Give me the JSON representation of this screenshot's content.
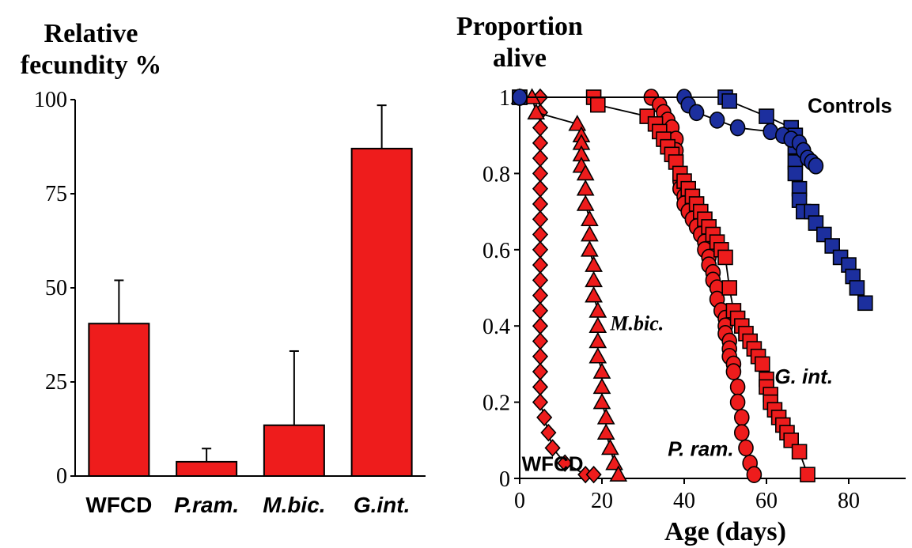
{
  "chart_data": [
    {
      "type": "bar",
      "title_lines": [
        "Relative",
        "fecundity %"
      ],
      "categories": [
        "WFCD",
        "P.ram.",
        "M.bic.",
        "G.int."
      ],
      "values": [
        40.5,
        3.8,
        13.5,
        87
      ],
      "error_upper": [
        52,
        7.3,
        33.2,
        98.5
      ],
      "ylim": [
        0,
        100
      ],
      "yticks": [
        0,
        25,
        50,
        75,
        100
      ],
      "bar_color": "#ee1c1c",
      "grid": false
    },
    {
      "type": "line",
      "title_lines": [
        "Proportion",
        "alive"
      ],
      "xlabel": "Age (days)",
      "xlim": [
        0,
        85
      ],
      "ylim": [
        0,
        1
      ],
      "xticks": [
        0,
        20,
        40,
        60,
        80
      ],
      "yticks": [
        0,
        0.2,
        0.4,
        0.6,
        0.8,
        1
      ],
      "ytick_labels": [
        "0",
        "0.2",
        "0.4",
        "0.6",
        "0.8",
        "1"
      ],
      "grid": false,
      "series": [
        {
          "name": "WFCD",
          "marker": "diamond",
          "color": "#ee1c1c",
          "x": [
            0,
            5,
            5,
            5,
            5,
            5,
            5,
            5,
            5,
            5,
            5,
            5,
            5,
            5,
            5,
            5,
            5,
            5,
            5,
            5,
            5,
            5,
            6,
            7,
            8,
            11,
            16,
            18
          ],
          "y": [
            1,
            1,
            0.96,
            0.92,
            0.88,
            0.84,
            0.8,
            0.76,
            0.72,
            0.68,
            0.64,
            0.6,
            0.56,
            0.52,
            0.48,
            0.44,
            0.4,
            0.36,
            0.32,
            0.28,
            0.24,
            0.2,
            0.16,
            0.12,
            0.08,
            0.04,
            0.01,
            0.01
          ]
        },
        {
          "name": "M.bic.",
          "marker": "triangle",
          "color": "#ee1c1c",
          "x": [
            0,
            3,
            4,
            14,
            15,
            15,
            15,
            15,
            16,
            16,
            16,
            17,
            17,
            17,
            18,
            18,
            18,
            19,
            19,
            19,
            19,
            20,
            20,
            20,
            21,
            21,
            22,
            23,
            24
          ],
          "y": [
            1,
            1,
            0.96,
            0.93,
            0.9,
            0.88,
            0.85,
            0.82,
            0.8,
            0.76,
            0.72,
            0.68,
            0.64,
            0.6,
            0.56,
            0.52,
            0.48,
            0.44,
            0.4,
            0.36,
            0.32,
            0.28,
            0.24,
            0.2,
            0.16,
            0.12,
            0.08,
            0.04,
            0.01
          ]
        },
        {
          "name": "P. ram.",
          "marker": "circle",
          "color": "#ee1c1c",
          "x": [
            0,
            32,
            34,
            35,
            36,
            37,
            38,
            38,
            38,
            39,
            39,
            39,
            40,
            40,
            41,
            42,
            43,
            44,
            45,
            45,
            46,
            46,
            47,
            47,
            48,
            48,
            49,
            50,
            50,
            50,
            51,
            51,
            51,
            52,
            52,
            53,
            53,
            54,
            54,
            55,
            56,
            57
          ],
          "y": [
            1,
            1,
            0.98,
            0.96,
            0.94,
            0.92,
            0.89,
            0.86,
            0.83,
            0.8,
            0.78,
            0.76,
            0.74,
            0.72,
            0.7,
            0.68,
            0.66,
            0.64,
            0.62,
            0.6,
            0.58,
            0.56,
            0.54,
            0.52,
            0.5,
            0.47,
            0.44,
            0.42,
            0.4,
            0.38,
            0.36,
            0.34,
            0.32,
            0.3,
            0.28,
            0.24,
            0.2,
            0.16,
            0.12,
            0.08,
            0.04,
            0.01
          ]
        },
        {
          "name": "G. int.",
          "marker": "square",
          "color": "#ee1c1c",
          "x": [
            0,
            18,
            19,
            31,
            33,
            34,
            35,
            36,
            37,
            38,
            39,
            40,
            41,
            42,
            43,
            44,
            45,
            46,
            47,
            48,
            49,
            50,
            51,
            52,
            53,
            54,
            55,
            56,
            57,
            58,
            59,
            60,
            60,
            61,
            61,
            62,
            63,
            64,
            65,
            66,
            68,
            70
          ],
          "y": [
            1,
            1,
            0.98,
            0.95,
            0.93,
            0.91,
            0.89,
            0.87,
            0.85,
            0.83,
            0.8,
            0.78,
            0.76,
            0.74,
            0.72,
            0.7,
            0.68,
            0.66,
            0.64,
            0.62,
            0.6,
            0.58,
            0.5,
            0.44,
            0.42,
            0.4,
            0.38,
            0.36,
            0.34,
            0.32,
            0.3,
            0.26,
            0.24,
            0.22,
            0.2,
            0.18,
            0.16,
            0.14,
            0.12,
            0.1,
            0.07,
            0.01
          ]
        },
        {
          "name": "Controls",
          "marker": "square",
          "color": "#1c2f9e",
          "x": [
            0,
            50,
            51,
            60,
            66,
            67,
            67,
            67,
            67,
            68,
            68,
            69,
            71,
            72,
            74,
            76,
            78,
            80,
            81,
            82,
            84
          ],
          "y": [
            1,
            1,
            0.99,
            0.95,
            0.92,
            0.9,
            0.87,
            0.83,
            0.8,
            0.76,
            0.73,
            0.7,
            0.7,
            0.67,
            0.64,
            0.61,
            0.58,
            0.56,
            0.53,
            0.5,
            0.46
          ]
        },
        {
          "name": "Controls",
          "marker": "circle",
          "color": "#1c2f9e",
          "x": [
            0,
            40,
            41,
            43,
            48,
            53,
            61,
            64,
            66,
            68,
            69,
            70,
            71,
            72
          ],
          "y": [
            1,
            1,
            0.98,
            0.96,
            0.94,
            0.92,
            0.91,
            0.9,
            0.89,
            0.88,
            0.86,
            0.84,
            0.83,
            0.82
          ]
        }
      ],
      "annotations": [
        {
          "text": "Controls",
          "x": 70,
          "y": 0.98,
          "italic": false
        },
        {
          "text": "M.bic.",
          "x": 22,
          "y": 0.41,
          "italic": true
        },
        {
          "text": "G. int.",
          "x": 62,
          "y": 0.27,
          "italic": true
        },
        {
          "text": "P. ram.",
          "x": 36,
          "y": 0.08,
          "italic": true
        },
        {
          "text": "WFCD",
          "x": 0.5,
          "y": 0.04,
          "italic": false
        }
      ]
    }
  ]
}
